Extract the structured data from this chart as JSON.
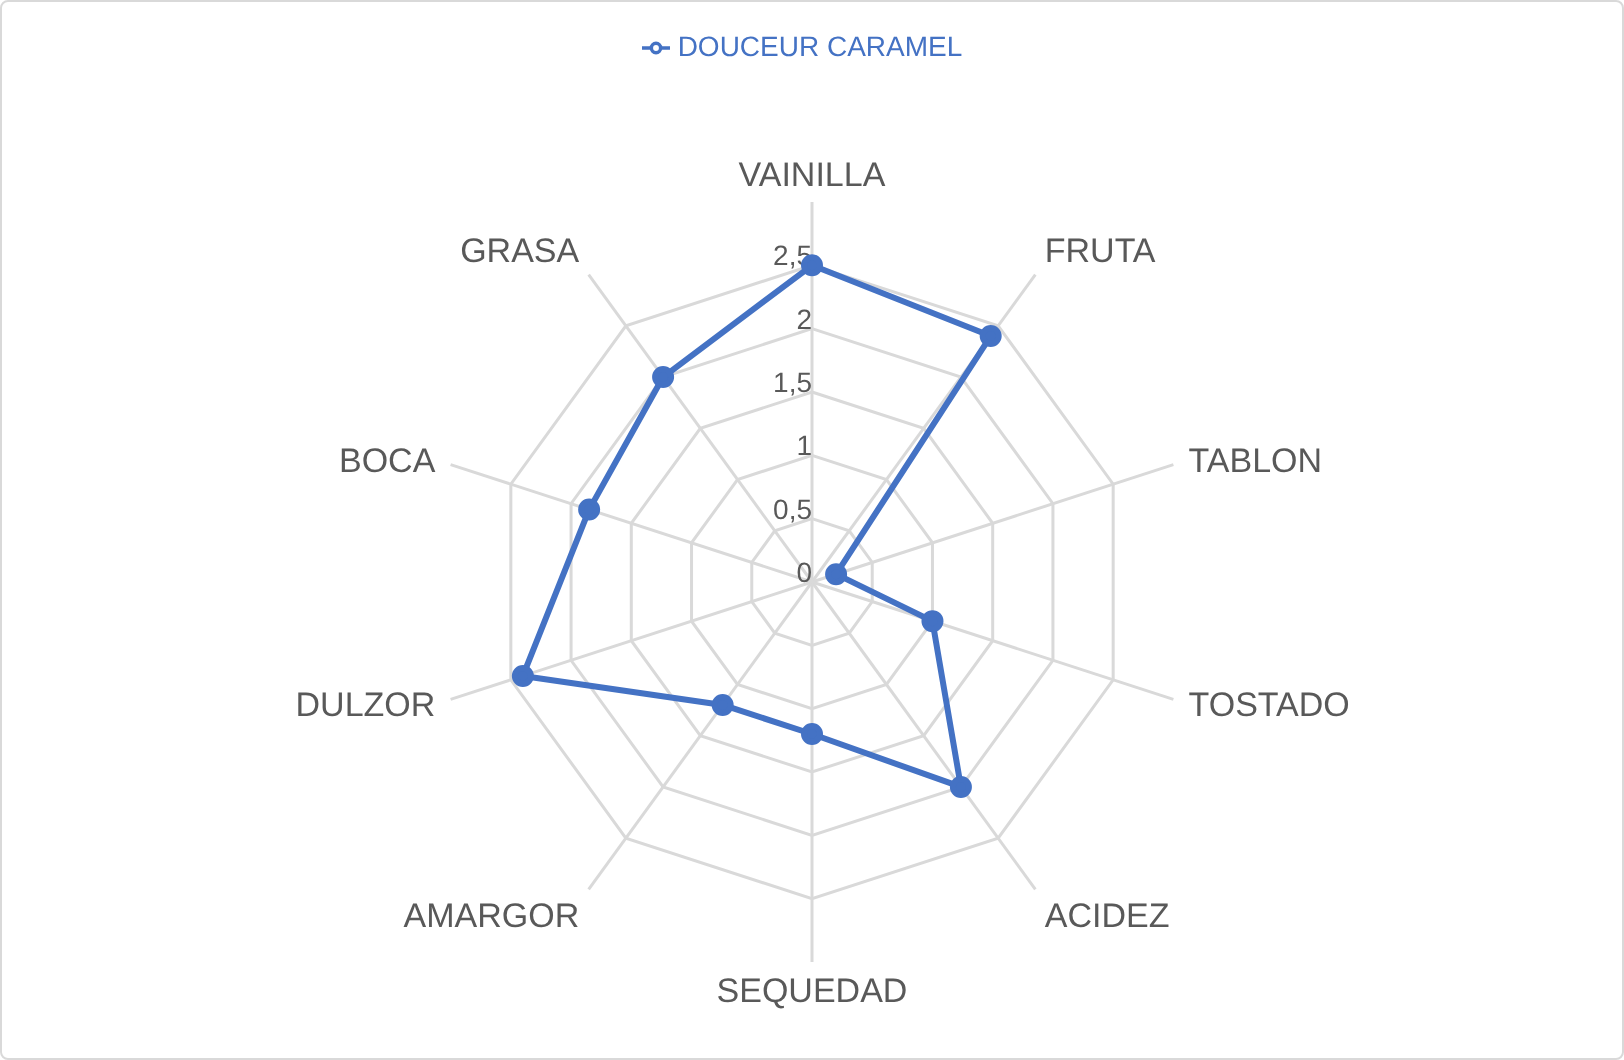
{
  "chart_data": {
    "type": "radar",
    "categories": [
      "VAINILLA",
      "FRUTA",
      "TABLON",
      "TOSTADO",
      "ACIDEZ",
      "SEQUEDAD",
      "AMARGOR",
      "DULZOR",
      "BOCA",
      "GRASA"
    ],
    "series": [
      {
        "name": "DOUCEUR CARAMEL",
        "color": "#4472c4",
        "values": [
          2.5,
          2.4,
          0.2,
          1.0,
          2.0,
          1.2,
          1.2,
          2.4,
          1.85,
          2.0
        ]
      }
    ],
    "ylim": [
      0,
      2.5
    ],
    "yticks": [
      0,
      {
        "value": 0.5,
        "label": "0,5"
      },
      1,
      {
        "value": 1.5,
        "label": "1,5"
      },
      2,
      {
        "value": 2.5,
        "label": "2,5"
      }
    ],
    "grid": true,
    "legend": "top",
    "marker": "circle",
    "line_style": "solid"
  }
}
